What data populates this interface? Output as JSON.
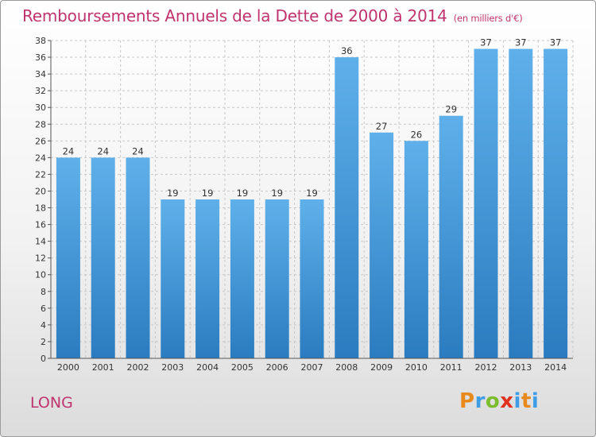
{
  "chart_data": {
    "type": "bar",
    "title": "Remboursements Annuels de la Dette de 2000 à 2014",
    "subtitle": "(en milliers d'€)",
    "categories": [
      "2000",
      "2001",
      "2002",
      "2003",
      "2004",
      "2005",
      "2006",
      "2007",
      "2008",
      "2009",
      "2010",
      "2011",
      "2012",
      "2013",
      "2014"
    ],
    "values": [
      24,
      24,
      24,
      19,
      19,
      19,
      19,
      19,
      36,
      27,
      26,
      29,
      37,
      37,
      37
    ],
    "ylim": [
      0,
      38
    ],
    "yticks": [
      0,
      2,
      4,
      6,
      8,
      10,
      12,
      14,
      16,
      18,
      20,
      22,
      24,
      26,
      28,
      30,
      32,
      34,
      36,
      38
    ],
    "grid": true,
    "bar_color": "#4a9fe0"
  },
  "footer": {
    "commune": "LONG",
    "brand": [
      "P",
      "r",
      "o",
      "x",
      "i",
      "t",
      "i"
    ],
    "brand_colors": [
      "#e8891c",
      "#3f9de6",
      "#7bbd2c",
      "#e0321f",
      "#3f9de6",
      "#e8891c",
      "#3f9de6"
    ]
  }
}
